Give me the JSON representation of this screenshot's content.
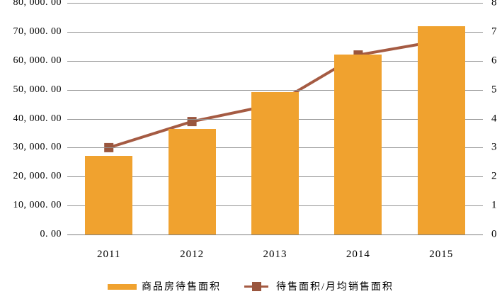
{
  "chart_data": {
    "type": "bar",
    "subtype": "combo-bar-line",
    "title": "",
    "categories": [
      "2011",
      "2012",
      "2013",
      "2014",
      "2015"
    ],
    "series": [
      {
        "name": "商品房待售面积",
        "type": "bar",
        "axis": "left",
        "values": [
          27194,
          36460,
          49295,
          62169,
          71853
        ],
        "color": "#F0A22F"
      },
      {
        "name": "待售面积/月均销售面积",
        "type": "line",
        "axis": "right",
        "values": [
          3.0,
          3.9,
          4.5,
          6.2,
          6.7
        ],
        "color": "#A55B43",
        "marker": "square",
        "marker_color": "#9A563E"
      }
    ],
    "left_axis": {
      "min": 0,
      "max": 80000,
      "step": 10000,
      "tick_labels_top_to_bottom": [
        "80, 000. 00",
        "70, 000. 00",
        "60, 000. 00",
        "50, 000. 00",
        "40, 000. 00",
        "30, 000. 00",
        "20, 000. 00",
        "10, 000. 00",
        "0. 00"
      ]
    },
    "right_axis": {
      "min": 0,
      "max": 8,
      "step": 1,
      "tick_labels_top_to_bottom": [
        "8",
        "7",
        "6",
        "5",
        "4",
        "3",
        "2",
        "1",
        "0"
      ]
    },
    "grid": true,
    "gridline_color": "#949494",
    "axis_line_color": "#7F7F7F",
    "background_color": "#FFFFFF",
    "legend_position": "bottom"
  }
}
